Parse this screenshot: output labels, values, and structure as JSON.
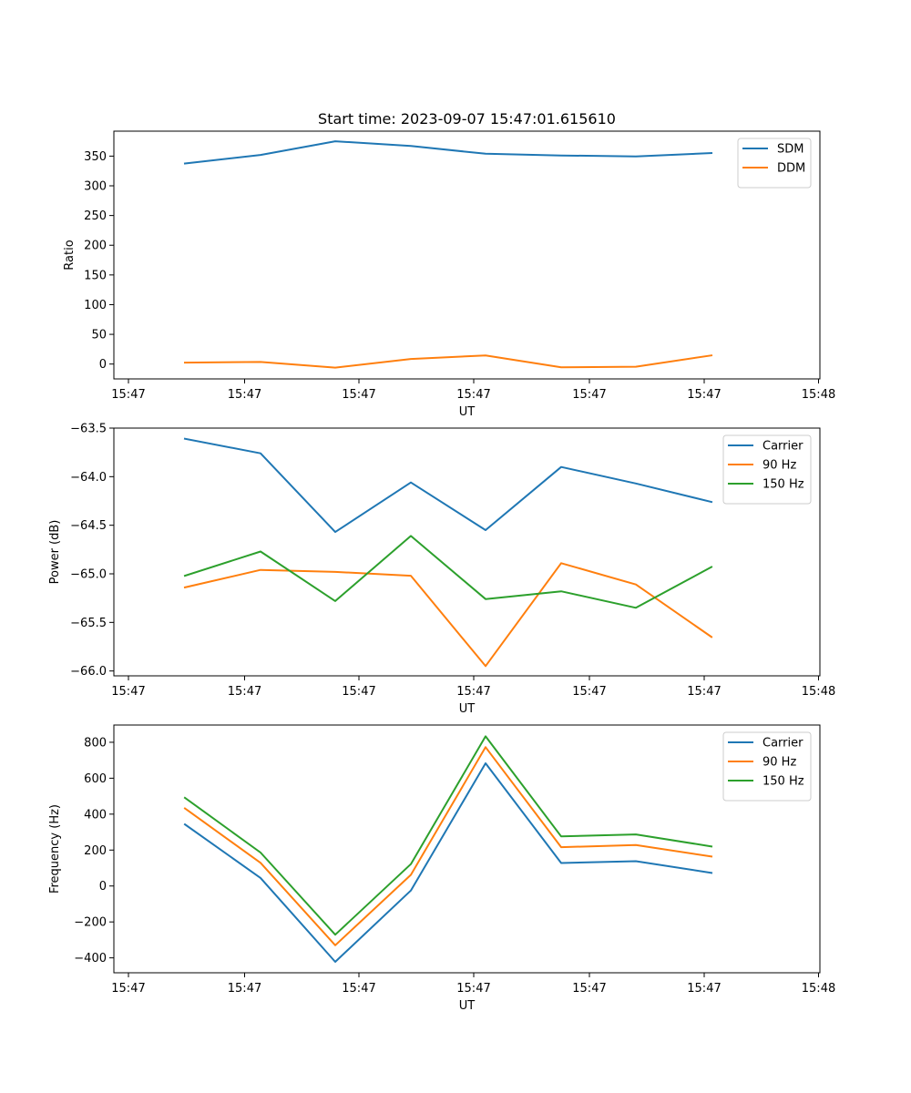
{
  "chart_data": [
    {
      "type": "line",
      "title": "Start time: 2023-09-07 15:47:01.615610",
      "xlabel": "UT",
      "ylabel": "Ratio",
      "x_tick_labels": [
        "15:47",
        "15:47",
        "15:47",
        "15:47",
        "15:47",
        "15:47",
        "15:48"
      ],
      "ylim": [
        -25,
        392
      ],
      "yticks": [
        0,
        50,
        100,
        150,
        200,
        250,
        300,
        350
      ],
      "y_tick_labels": [
        "0",
        "50",
        "100",
        "150",
        "200",
        "250",
        "300",
        "350"
      ],
      "legend_position": "top-right",
      "series": [
        {
          "name": "SDM",
          "color": "#1f77b4",
          "values": [
            337.5,
            352,
            375,
            367,
            354,
            351,
            349.5,
            355
          ]
        },
        {
          "name": "DDM",
          "color": "#ff7f0e",
          "values": [
            2.5,
            3.5,
            -6,
            8.5,
            14.5,
            -5.5,
            -4.5,
            14.5
          ]
        }
      ]
    },
    {
      "type": "line",
      "title": "",
      "xlabel": "UT",
      "ylabel": "Power (dB)",
      "x_tick_labels": [
        "15:47",
        "15:47",
        "15:47",
        "15:47",
        "15:47",
        "15:47",
        "15:48"
      ],
      "ylim": [
        -66.05,
        -63.5
      ],
      "yticks": [
        -66.0,
        -65.5,
        -65.0,
        -64.5,
        -64.0,
        -63.5
      ],
      "y_tick_labels": [
        "−66.0",
        "−65.5",
        "−65.0",
        "−64.5",
        "−64.0",
        "−63.5"
      ],
      "legend_position": "top-right",
      "series": [
        {
          "name": "Carrier",
          "color": "#1f77b4",
          "values": [
            -63.61,
            -63.76,
            -64.57,
            -64.06,
            -64.55,
            -63.9,
            -64.07,
            -64.26
          ]
        },
        {
          "name": "90 Hz",
          "color": "#ff7f0e",
          "values": [
            -65.14,
            -64.96,
            -64.98,
            -65.02,
            -65.95,
            -64.89,
            -65.11,
            -65.65
          ]
        },
        {
          "name": "150 Hz",
          "color": "#2ca02c",
          "values": [
            -65.02,
            -64.77,
            -65.28,
            -64.61,
            -65.26,
            -65.18,
            -65.35,
            -64.93
          ]
        }
      ]
    },
    {
      "type": "line",
      "title": "",
      "xlabel": "UT",
      "ylabel": "Frequency (Hz)",
      "x_tick_labels": [
        "15:47",
        "15:47",
        "15:47",
        "15:47",
        "15:47",
        "15:47",
        "15:48"
      ],
      "ylim": [
        -483,
        896
      ],
      "yticks": [
        -400,
        -200,
        0,
        200,
        400,
        600,
        800
      ],
      "y_tick_labels": [
        "−400",
        "−200",
        "0",
        "200",
        "400",
        "600",
        "800"
      ],
      "legend_position": "top-right",
      "series": [
        {
          "name": "Carrier",
          "color": "#1f77b4",
          "values": [
            343,
            45,
            -422,
            -25,
            683,
            128,
            138,
            73
          ]
        },
        {
          "name": "90 Hz",
          "color": "#ff7f0e",
          "values": [
            432,
            129,
            -330,
            62,
            773,
            216,
            228,
            164
          ]
        },
        {
          "name": "150 Hz",
          "color": "#2ca02c",
          "values": [
            491,
            186,
            -271,
            122,
            833,
            276,
            287,
            220
          ]
        }
      ]
    }
  ]
}
